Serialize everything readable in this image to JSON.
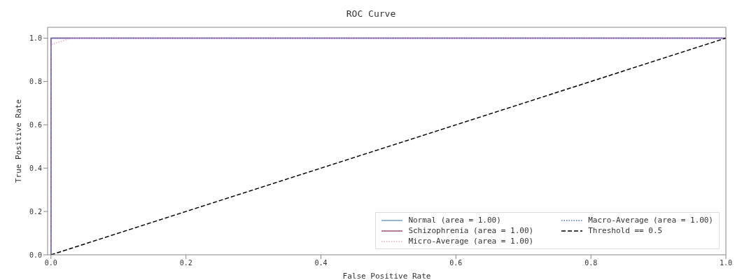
{
  "chart_data": {
    "type": "line",
    "title": "ROC Curve",
    "xlabel": "False Positive Rate",
    "ylabel": "True Positive Rate",
    "xlim": [
      -0.005,
      1.0
    ],
    "ylim": [
      0,
      1.05
    ],
    "xticks": [
      {
        "value": 0,
        "label": "0.0"
      },
      {
        "value": 0.2,
        "label": "0.2"
      },
      {
        "value": 0.4,
        "label": "0.4"
      },
      {
        "value": 0.6,
        "label": "0.6"
      },
      {
        "value": 0.8,
        "label": "0.8"
      },
      {
        "value": 1,
        "label": "1.0"
      }
    ],
    "yticks": [
      {
        "value": 0,
        "label": "0.0"
      },
      {
        "value": 0.2,
        "label": "0.2"
      },
      {
        "value": 0.4,
        "label": "0.4"
      },
      {
        "value": 0.6,
        "label": "0.6"
      },
      {
        "value": 0.8,
        "label": "0.8"
      },
      {
        "value": 1,
        "label": "1.0"
      }
    ],
    "grid": false,
    "legend": "bottom right",
    "marker": "none",
    "series": [
      {
        "name": "Normal (area = 1.00)",
        "color": "#6f9cc8",
        "line_style": "solid",
        "x": [
          0,
          0,
          1
        ],
        "values": [
          0,
          1,
          1
        ]
      },
      {
        "name": "Schizophrenia (area = 1.00)",
        "color": "#9c4f7c",
        "line_style": "solid",
        "x": [
          0,
          0,
          1
        ],
        "values": [
          0,
          1,
          1
        ]
      },
      {
        "name": "Micro-Average (area = 1.00)",
        "color": "#f4a3c8",
        "line_style": "dotted",
        "x": [
          0,
          0,
          0.01,
          0.02,
          0.03,
          1
        ],
        "values": [
          0,
          0.97,
          0.98,
          0.99,
          1,
          1
        ]
      },
      {
        "name": "Macro-Average (area = 1.00)",
        "color": "#5070e0",
        "line_style": "dotted",
        "x": [
          0,
          0,
          1
        ],
        "values": [
          0,
          1,
          1
        ]
      },
      {
        "name": "Threshold == 0.5",
        "color": "#000000",
        "line_style": "dashed",
        "x": [
          0,
          1
        ],
        "values": [
          0,
          1
        ]
      }
    ]
  }
}
